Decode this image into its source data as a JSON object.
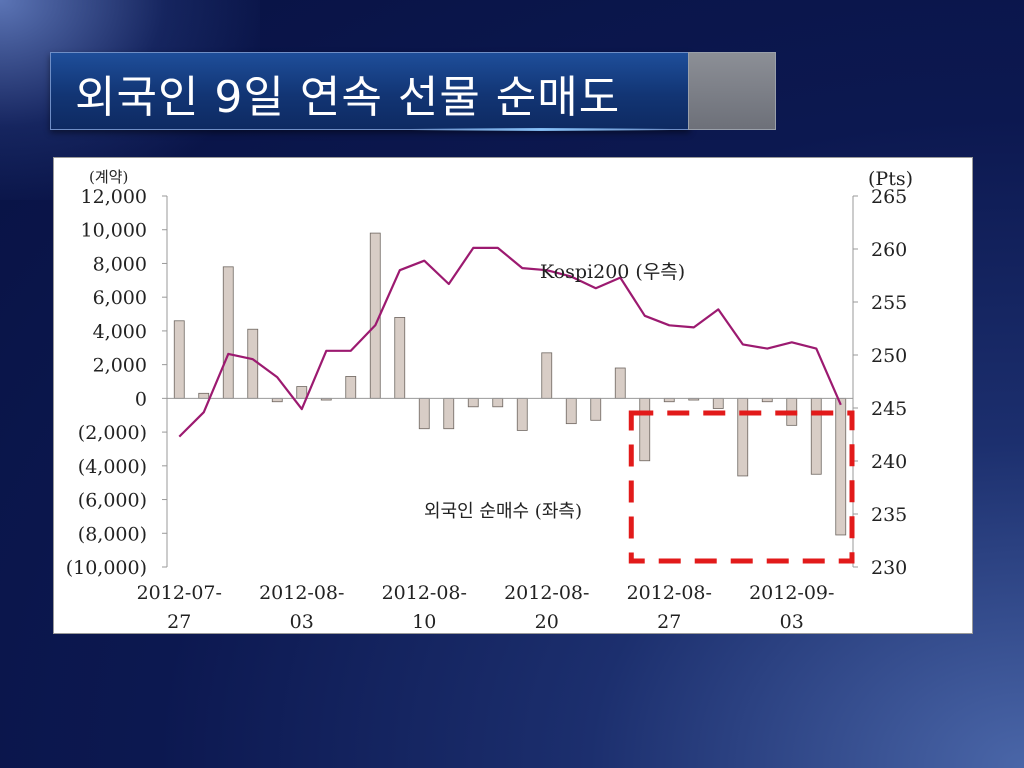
{
  "slide": {
    "title": "외국인 9일 연속 선물 순매도"
  },
  "chart_data": {
    "type": "bar+line",
    "left_axis": {
      "unit_label": "(계약)",
      "min": -10000,
      "max": 12000,
      "step": 2000,
      "tick_labels": [
        "12,000",
        "10,000",
        "8,000",
        "6,000",
        "4,000",
        "2,000",
        "0",
        "(2,000)",
        "(4,000)",
        "(6,000)",
        "(8,000)",
        "(10,000)"
      ]
    },
    "right_axis": {
      "unit_label": "(Pts)",
      "min": 230,
      "max": 265,
      "step": 5,
      "tick_labels": [
        "265",
        "260",
        "255",
        "250",
        "245",
        "240",
        "235",
        "230"
      ]
    },
    "x_labels": [
      "2012-07-27",
      "2012-08-03",
      "2012-08-10",
      "2012-08-20",
      "2012-08-27",
      "2012-09-03"
    ],
    "series": [
      {
        "name": "외국인 순매수 (좌측)",
        "type": "bar",
        "axis": "left",
        "values": [
          4600,
          300,
          7800,
          4100,
          -200,
          700,
          -100,
          1300,
          9800,
          4800,
          -1800,
          -1800,
          -500,
          -500,
          -1900,
          2700,
          -1500,
          -1300,
          1800,
          -3700,
          -200,
          -100,
          -600,
          -4600,
          -200,
          -1600,
          -4500,
          -8100
        ]
      },
      {
        "name": "Kospi200 (우측)",
        "type": "line",
        "axis": "right",
        "values": [
          242.3,
          244.6,
          250.1,
          249.6,
          247.9,
          244.9,
          250.4,
          250.4,
          252.8,
          258.0,
          258.9,
          256.7,
          260.1,
          260.1,
          258.2,
          258.0,
          257.4,
          256.3,
          257.3,
          253.7,
          252.8,
          252.6,
          254.3,
          251.0,
          250.6,
          251.2,
          250.6,
          245.3
        ]
      }
    ],
    "colors": {
      "bar_fill": "#d8cdc6",
      "bar_stroke": "#6e6660",
      "line": "#9c1a70",
      "highlight": "#e21a1a"
    },
    "annotations": [
      {
        "text": "Kospi200 (우측)"
      },
      {
        "text": "외국인 순매수 (좌측)"
      }
    ],
    "highlight_box": {
      "style": "dashed",
      "range_from": "2012-08-27",
      "range_to": "2012-09-06"
    }
  }
}
